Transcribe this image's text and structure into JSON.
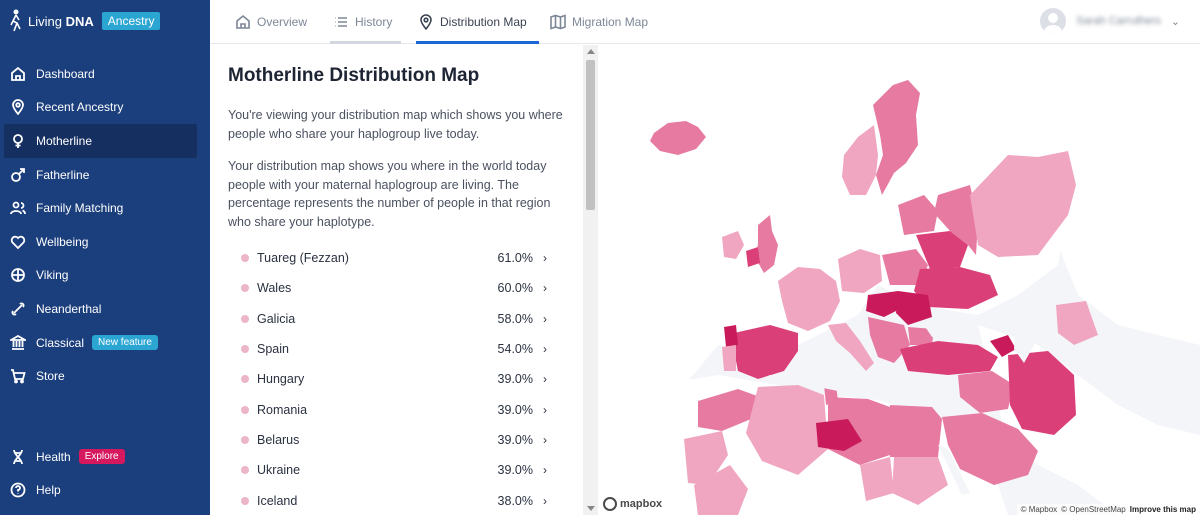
{
  "brand": {
    "name_part1": "Living",
    "name_part2": "DNA",
    "badge": "Ancestry"
  },
  "sidebar": {
    "items": [
      {
        "label": "Dashboard",
        "icon": "home-icon"
      },
      {
        "label": "Recent Ancestry",
        "icon": "location-pin-icon"
      },
      {
        "label": "Motherline",
        "icon": "female-symbol-icon",
        "active": true
      },
      {
        "label": "Fatherline",
        "icon": "male-symbol-icon"
      },
      {
        "label": "Family Matching",
        "icon": "people-icon"
      },
      {
        "label": "Wellbeing",
        "icon": "heart-icon"
      },
      {
        "label": "Viking",
        "icon": "compass-icon"
      },
      {
        "label": "Neanderthal",
        "icon": "bone-icon"
      },
      {
        "label": "Classical",
        "icon": "column-building-icon",
        "badge": "New feature"
      },
      {
        "label": "Store",
        "icon": "cart-icon"
      }
    ],
    "bottom": [
      {
        "label": "Health",
        "icon": "dna-icon",
        "badge": "Explore"
      },
      {
        "label": "Help",
        "icon": "question-icon"
      }
    ]
  },
  "tabs": [
    {
      "label": "Overview",
      "icon": "home-icon"
    },
    {
      "label": "History",
      "icon": "list-icon"
    },
    {
      "label": "Distribution Map",
      "icon": "location-pin-icon",
      "active": true
    },
    {
      "label": "Migration Map",
      "icon": "map-icon"
    }
  ],
  "user": {
    "name": "Sarah Carruthers"
  },
  "panel": {
    "title": "Motherline Distribution Map",
    "intro": "You're viewing your distribution map which shows you where people who share your haplogroup live today.",
    "description": "Your distribution map shows you where in the world today people with your maternal haplogroup are living. The percentage represents the number of people in that region who share your haplotype."
  },
  "regions": [
    {
      "name": "Tuareg (Fezzan)",
      "percent": "61.0%"
    },
    {
      "name": "Wales",
      "percent": "60.0%"
    },
    {
      "name": "Galicia",
      "percent": "58.0%"
    },
    {
      "name": "Spain",
      "percent": "54.0%"
    },
    {
      "name": "Hungary",
      "percent": "39.0%"
    },
    {
      "name": "Romania",
      "percent": "39.0%"
    },
    {
      "name": "Belarus",
      "percent": "39.0%"
    },
    {
      "name": "Ukraine",
      "percent": "39.0%"
    },
    {
      "name": "Iceland",
      "percent": "38.0%"
    }
  ],
  "map": {
    "logo": "mapbox",
    "attribution": [
      "© Mapbox",
      "© OpenStreetMap"
    ],
    "improve": "Improve this map",
    "colors": {
      "light": "#f0a6c0",
      "mid": "#e77aa0",
      "dark": "#db3f78",
      "darkest": "#c91a5b",
      "land": "#ffffff",
      "water": "#f4f5f9"
    }
  }
}
